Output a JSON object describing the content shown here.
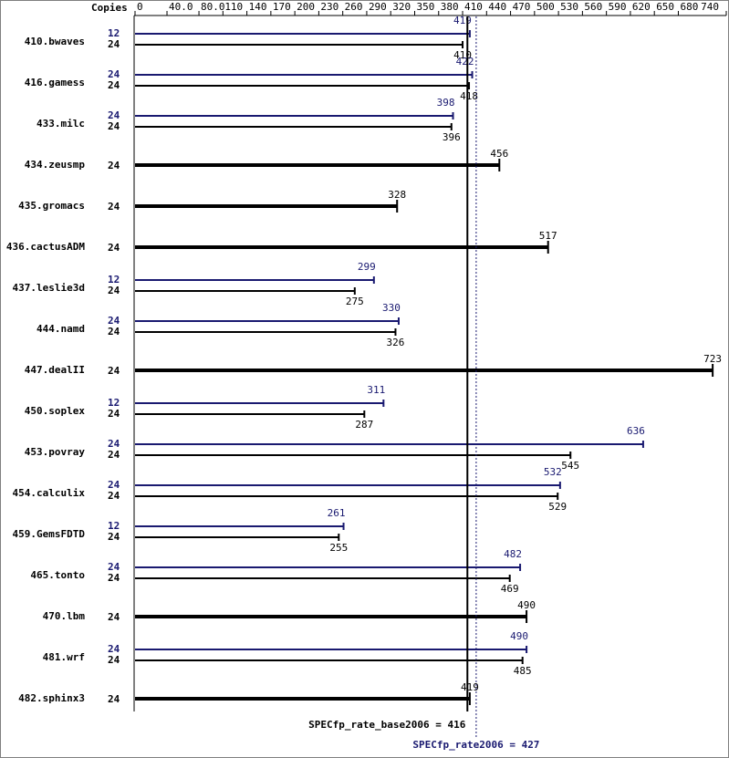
{
  "chart_data": {
    "type": "bar",
    "orientation": "horizontal",
    "axis_title": "Copies",
    "categories": [
      "410.bwaves",
      "416.gamess",
      "433.milc",
      "434.zeusmp",
      "435.gromacs",
      "436.cactusADM",
      "437.leslie3d",
      "444.namd",
      "447.dealII",
      "450.soplex",
      "453.povray",
      "454.calculix",
      "459.GemsFDTD",
      "465.tonto",
      "470.lbm",
      "481.wrf",
      "482.sphinx3"
    ],
    "series": [
      {
        "color": "#191970",
        "copies": [
          12,
          24,
          24,
          null,
          null,
          null,
          12,
          24,
          null,
          12,
          24,
          24,
          12,
          24,
          null,
          24,
          null
        ],
        "values": [
          419,
          422,
          398,
          null,
          null,
          null,
          299,
          330,
          null,
          311,
          636,
          532,
          261,
          482,
          null,
          490,
          null
        ]
      },
      {
        "color": "#000000",
        "copies": [
          24,
          24,
          24,
          24,
          24,
          24,
          24,
          24,
          24,
          24,
          24,
          24,
          24,
          24,
          24,
          24,
          24
        ],
        "values": [
          410,
          418,
          396,
          456,
          328,
          517,
          275,
          326,
          723,
          287,
          545,
          529,
          255,
          469,
          490,
          485,
          419
        ]
      }
    ],
    "xlim": [
      0,
      740
    ],
    "xticks": [
      0,
      {
        "value": 40,
        "label": "40.0"
      },
      {
        "value": 80,
        "label": "80.0"
      },
      110,
      140,
      170,
      200,
      230,
      260,
      290,
      320,
      350,
      380,
      410,
      440,
      470,
      500,
      530,
      560,
      590,
      620,
      650,
      680,
      740
    ],
    "reference_lines": [
      {
        "label": "SPECfp_rate_base2006 = 416",
        "value": 416,
        "color": "#000000"
      },
      {
        "label": "SPECfp_rate2006 = 427",
        "value": 427,
        "color": "#191970"
      }
    ]
  }
}
